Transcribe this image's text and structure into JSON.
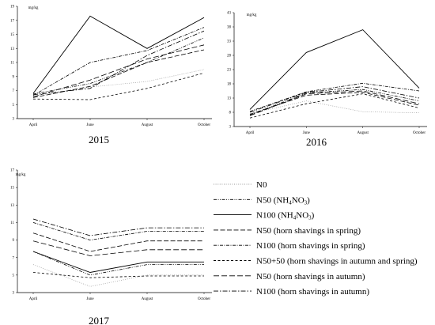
{
  "chart_data": [
    {
      "type": "line",
      "title": "2015",
      "ylabel": "mg/kg",
      "x": [
        "April",
        "June",
        "August",
        "October"
      ],
      "yticks": [
        3,
        5,
        7,
        9,
        11,
        13,
        15,
        17,
        19
      ],
      "ylim": [
        3,
        19
      ],
      "series": [
        {
          "name": "N0",
          "values": [
            6.2,
            7.5,
            8.3,
            10.0
          ]
        },
        {
          "name": "N50 (NH4NO3)",
          "values": [
            6.5,
            8.0,
            11.0,
            14.5
          ]
        },
        {
          "name": "N100 (NH4NO3)",
          "values": [
            6.6,
            17.6,
            13.0,
            17.4
          ]
        },
        {
          "name": "N50 (horn shavings in spring)",
          "values": [
            6.0,
            7.6,
            11.0,
            12.8
          ]
        },
        {
          "name": "N100 (horn shavings in spring)",
          "values": [
            6.3,
            11.0,
            12.7,
            16.0
          ]
        },
        {
          "name": "N50+50 (horn shavings in autumn and spring)",
          "values": [
            5.8,
            5.7,
            7.3,
            9.5
          ]
        },
        {
          "name": "N50 (horn shavings in autumn)",
          "values": [
            6.1,
            8.5,
            11.5,
            13.5
          ]
        },
        {
          "name": "N100 (horn shavings in autumn)",
          "values": [
            6.4,
            7.3,
            12.0,
            15.5
          ]
        }
      ]
    },
    {
      "type": "line",
      "title": "2016",
      "ylabel": "mg/kg",
      "x": [
        "April",
        "June",
        "August",
        "October"
      ],
      "yticks": [
        3,
        8,
        13,
        18,
        23,
        28,
        33,
        38,
        43
      ],
      "ylim": [
        3,
        43
      ],
      "series": [
        {
          "name": "N0",
          "values": [
            7.5,
            12.0,
            8.2,
            7.8
          ]
        },
        {
          "name": "N50 (NH4NO3)",
          "values": [
            7.0,
            14.8,
            16.0,
            12.0
          ]
        },
        {
          "name": "N100 (NH4NO3)",
          "values": [
            9.0,
            29.0,
            37.0,
            16.5
          ]
        },
        {
          "name": "N50 (horn shavings in spring)",
          "values": [
            7.3,
            14.0,
            15.0,
            10.5
          ]
        },
        {
          "name": "N100 (horn shavings in spring)",
          "values": [
            8.3,
            15.2,
            18.2,
            15.5
          ]
        },
        {
          "name": "N50+50 (horn shavings in autumn and spring)",
          "values": [
            6.0,
            11.0,
            14.5,
            9.5
          ]
        },
        {
          "name": "N50 (horn shavings in autumn)",
          "values": [
            6.8,
            14.5,
            15.5,
            11.0
          ]
        },
        {
          "name": "N100 (horn shavings in autumn)",
          "values": [
            8.0,
            15.0,
            17.0,
            13.0
          ]
        }
      ]
    },
    {
      "type": "line",
      "title": "2017",
      "ylabel": "mg/kg",
      "x": [
        "April",
        "June",
        "August",
        "October"
      ],
      "yticks": [
        3,
        5,
        7,
        9,
        11,
        13,
        15,
        17
      ],
      "ylim": [
        3,
        17
      ],
      "series": [
        {
          "name": "N0",
          "values": [
            6.2,
            3.7,
            5.0,
            5.0
          ]
        },
        {
          "name": "N50 (NH4NO3)",
          "values": [
            7.7,
            5.0,
            6.2,
            6.2
          ]
        },
        {
          "name": "N100 (NH4NO3)",
          "values": [
            7.7,
            5.3,
            6.5,
            6.5
          ]
        },
        {
          "name": "N50 (horn shavings in spring)",
          "values": [
            9.8,
            7.7,
            8.9,
            8.9
          ]
        },
        {
          "name": "N100 (horn shavings in spring)",
          "values": [
            11.0,
            9.0,
            10.0,
            10.0
          ]
        },
        {
          "name": "N50+50 (horn shavings in autumn and spring)",
          "values": [
            5.3,
            4.7,
            4.9,
            4.9
          ]
        },
        {
          "name": "N50 (horn shavings in autumn)",
          "values": [
            8.9,
            7.2,
            7.9,
            7.9
          ]
        },
        {
          "name": "N100 (horn shavings in autumn)",
          "values": [
            11.4,
            9.5,
            10.4,
            10.4
          ]
        }
      ]
    }
  ],
  "legend": {
    "items": [
      {
        "label": "N0",
        "style": "dotted"
      },
      {
        "label": "N50 (NH",
        "sub1": "4",
        "mid": "NO",
        "sub2": "3",
        "tail": ")",
        "style": "dash-dot-dot"
      },
      {
        "label": "N100 (NH",
        "sub1": "4",
        "mid": "NO",
        "sub2": "3",
        "tail": ")",
        "style": "solid"
      },
      {
        "label": "N50 (horn shavings in spring)",
        "style": "long-dash"
      },
      {
        "label": "N100 (horn shavings in spring)",
        "style": "dash-dot"
      },
      {
        "label": "N50+50 (horn shavings in autumn and spring)",
        "style": "dash"
      },
      {
        "label": "N50 (horn shavings in autumn)",
        "style": "long-dash-2"
      },
      {
        "label": "N100 (horn shavings in autumn)",
        "style": "long-dash-dot"
      }
    ]
  },
  "colors": {
    "line": "#000000",
    "n0_line": "#9a9a9a",
    "axis": "#000000"
  }
}
